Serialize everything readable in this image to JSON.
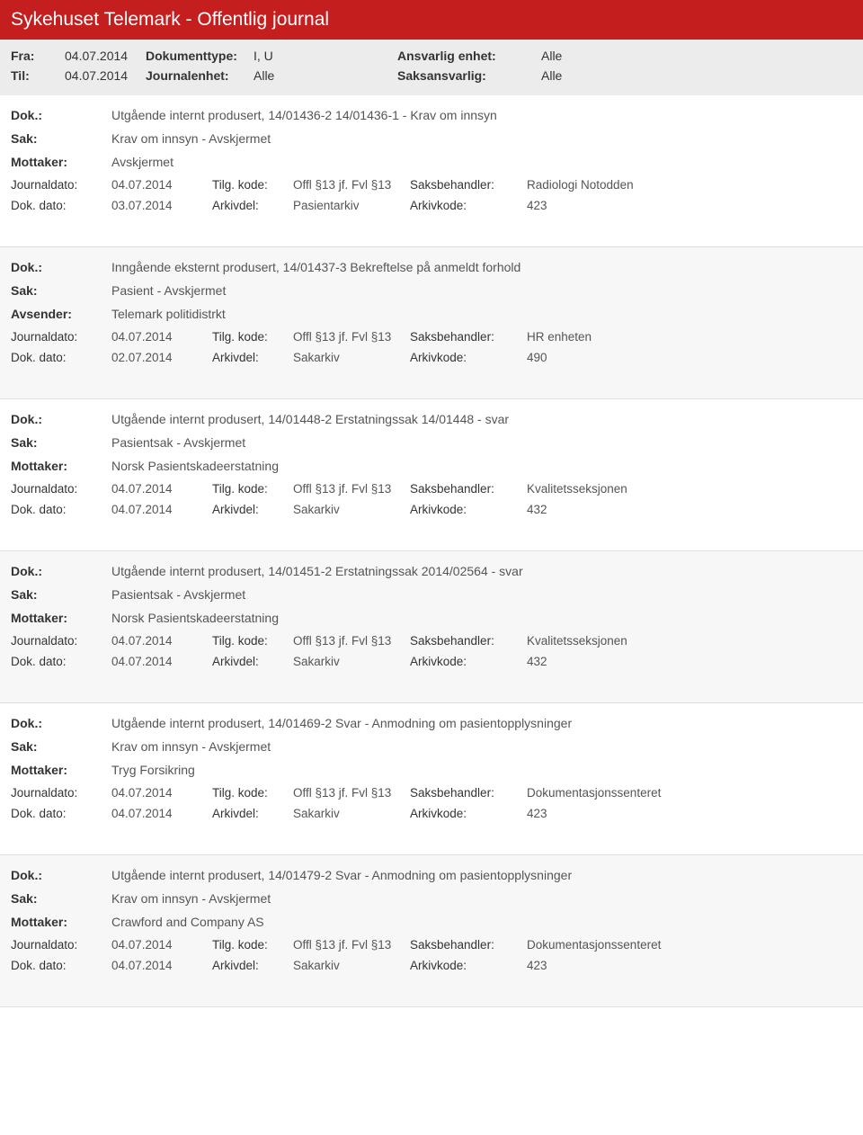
{
  "header": {
    "title": "Sykehuset Telemark - Offentlig journal",
    "fra_label": "Fra:",
    "fra_value": "04.07.2014",
    "til_label": "Til:",
    "til_value": "04.07.2014",
    "dokumenttype_label": "Dokumenttype:",
    "dokumenttype_value": "I, U",
    "journalenhet_label": "Journalenhet:",
    "journalenhet_value": "Alle",
    "ansvarlig_label": "Ansvarlig enhet:",
    "ansvarlig_value": "Alle",
    "saksansvarlig_label": "Saksansvarlig:",
    "saksansvarlig_value": "Alle"
  },
  "labels": {
    "dok": "Dok.:",
    "sak": "Sak:",
    "mottaker": "Mottaker:",
    "avsender": "Avsender:",
    "journaldato": "Journaldato:",
    "dokdato": "Dok. dato:",
    "tilgkode": "Tilg. kode:",
    "arkivdel": "Arkivdel:",
    "saksbehandler": "Saksbehandler:",
    "arkivkode": "Arkivkode:"
  },
  "entries": [
    {
      "dok": "Utgående internt produsert, 14/01436-2 14/01436-1 - Krav om innsyn",
      "sak": "Krav om innsyn - Avskjermet",
      "party_label": "Mottaker:",
      "party_value": "Avskjermet",
      "journaldato": "04.07.2014",
      "tilgkode": "Offl §13 jf. Fvl §13",
      "saksbehandler": "Radiologi Notodden",
      "dokdato": "03.07.2014",
      "arkivdel": "Pasientarkiv",
      "arkivkode": "423"
    },
    {
      "dok": "Inngående eksternt produsert, 14/01437-3 Bekreftelse på anmeldt forhold",
      "sak": "Pasient - Avskjermet",
      "party_label": "Avsender:",
      "party_value": "Telemark politidistrkt",
      "journaldato": "04.07.2014",
      "tilgkode": "Offl §13 jf. Fvl §13",
      "saksbehandler": "HR enheten",
      "dokdato": "02.07.2014",
      "arkivdel": "Sakarkiv",
      "arkivkode": "490"
    },
    {
      "dok": "Utgående internt produsert, 14/01448-2 Erstatningssak 14/01448 - svar",
      "sak": "Pasientsak - Avskjermet",
      "party_label": "Mottaker:",
      "party_value": "Norsk Pasientskadeerstatning",
      "journaldato": "04.07.2014",
      "tilgkode": "Offl §13 jf. Fvl §13",
      "saksbehandler": "Kvalitetsseksjonen",
      "dokdato": "04.07.2014",
      "arkivdel": "Sakarkiv",
      "arkivkode": "432"
    },
    {
      "dok": "Utgående internt produsert, 14/01451-2 Erstatningssak 2014/02564 - svar",
      "sak": "Pasientsak - Avskjermet",
      "party_label": "Mottaker:",
      "party_value": "Norsk Pasientskadeerstatning",
      "journaldato": "04.07.2014",
      "tilgkode": "Offl §13 jf. Fvl §13",
      "saksbehandler": "Kvalitetsseksjonen",
      "dokdato": "04.07.2014",
      "arkivdel": "Sakarkiv",
      "arkivkode": "432"
    },
    {
      "dok": "Utgående internt produsert, 14/01469-2 Svar - Anmodning om pasientopplysninger",
      "sak": "Krav om innsyn - Avskjermet",
      "party_label": "Mottaker:",
      "party_value": "Tryg Forsikring",
      "journaldato": "04.07.2014",
      "tilgkode": "Offl §13 jf. Fvl §13",
      "saksbehandler": "Dokumentasjonssenteret",
      "dokdato": "04.07.2014",
      "arkivdel": "Sakarkiv",
      "arkivkode": "423"
    },
    {
      "dok": "Utgående internt produsert, 14/01479-2 Svar - Anmodning om pasientopplysninger",
      "sak": "Krav om innsyn - Avskjermet",
      "party_label": "Mottaker:",
      "party_value": "Crawford and Company AS",
      "journaldato": "04.07.2014",
      "tilgkode": "Offl §13 jf. Fvl §13",
      "saksbehandler": "Dokumentasjonssenteret",
      "dokdato": "04.07.2014",
      "arkivdel": "Sakarkiv",
      "arkivkode": "423"
    }
  ]
}
